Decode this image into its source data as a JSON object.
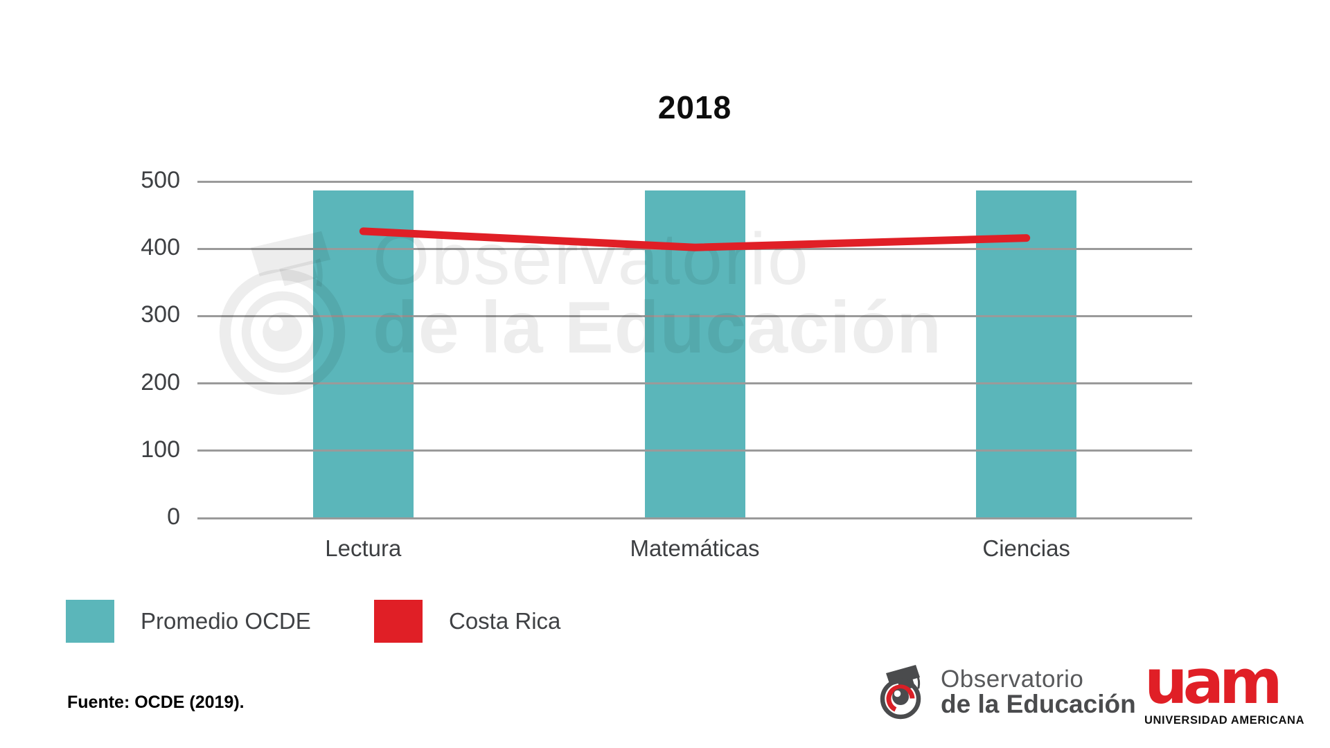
{
  "title": "2018",
  "chart_data": {
    "type": "bar",
    "title": "2018",
    "categories": [
      "Lectura",
      "Matemáticas",
      "Ciencias"
    ],
    "series": [
      {
        "name": "Promedio OCDE",
        "type": "bar",
        "color": "#5bb6ba",
        "values": [
          487,
          487,
          487
        ]
      },
      {
        "name": "Costa Rica",
        "type": "line",
        "color": "#e01f26",
        "values": [
          426,
          402,
          416
        ]
      }
    ],
    "xlabel": "",
    "ylabel": "",
    "ylim": [
      0,
      500
    ],
    "yticks": [
      0,
      100,
      200,
      300,
      400,
      500
    ],
    "grid": true,
    "legend_position": "bottom-left"
  },
  "watermark": {
    "line1": "Observatorio",
    "line2": "de la Educación"
  },
  "source": {
    "text": "Fuente: OCDE (2019)."
  },
  "footer": {
    "observatorio_logo": {
      "line1": "Observatorio",
      "line2": "de la Educación"
    },
    "uam_logo": {
      "acronym": "uam",
      "name": "UNIVERSIDAD AMERICANA"
    }
  },
  "colors": {
    "bar": "#5bb6ba",
    "line": "#e01f26",
    "grid": "#9a9a9a",
    "axis_text": "#3d3f42",
    "uam_red": "#e01f26",
    "logo_gray": "#4a4b4d"
  }
}
